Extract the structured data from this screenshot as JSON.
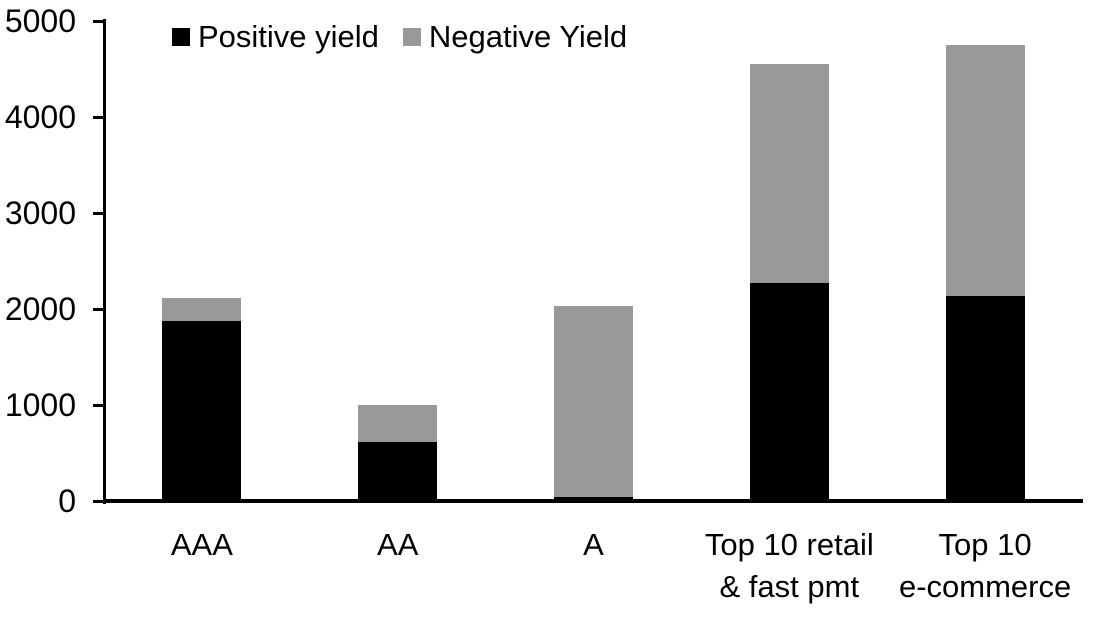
{
  "chart_data": {
    "type": "bar",
    "stacked": true,
    "title": "",
    "xlabel": "",
    "ylabel": "",
    "categories": [
      "AAA",
      "AA",
      "A",
      "Top 10 retail\n& fast pmt",
      "Top 10\ne-commerce"
    ],
    "series": [
      {
        "name": "Positive yield",
        "color": "#000000",
        "values": [
          1880,
          610,
          45,
          2270,
          2140
        ]
      },
      {
        "name": "Negative Yield",
        "color": "#999999",
        "values": [
          230,
          390,
          1985,
          2280,
          2610
        ]
      }
    ],
    "stack_totals": [
      2110,
      1000,
      2030,
      4550,
      4750
    ],
    "ylim": [
      0,
      5000
    ],
    "yticks": [
      0,
      1000,
      2000,
      3000,
      4000,
      5000
    ],
    "grid": false,
    "legend_position": "top",
    "axis_color": "#000000",
    "background_color": "#ffffff"
  }
}
